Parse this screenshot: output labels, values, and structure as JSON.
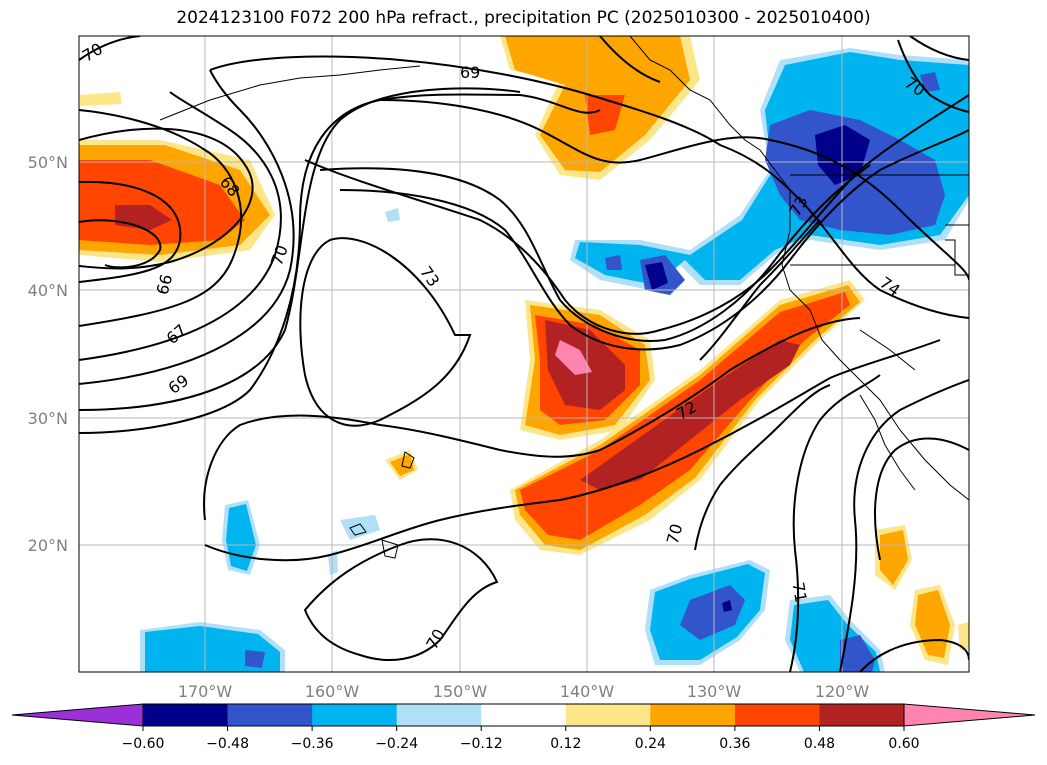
{
  "title": "2024123100 F072 200 hPa refract., precipitation PC (2025010300 - 2025010400)",
  "lat_labels": [
    "50°N",
    "40°N",
    "30°N",
    "20°N"
  ],
  "lon_labels": [
    "170°W",
    "160°W",
    "150°W",
    "140°W",
    "130°W",
    "120°W"
  ],
  "contour_labels": [
    "70",
    "69",
    "70",
    "68",
    "66",
    "67",
    "69",
    "70",
    "73",
    "74",
    "72",
    "70",
    "71",
    "70",
    "73"
  ],
  "colorbar": {
    "ticks": [
      "−0.60",
      "−0.48",
      "−0.36",
      "−0.24",
      "−0.12",
      "0.12",
      "0.24",
      "0.36",
      "0.48",
      "0.60"
    ],
    "colors": [
      "#9b30d9",
      "#00008b",
      "#3355cc",
      "#00b4f0",
      "#b0e0f8",
      "#ffffff",
      "#fde68a",
      "#ffa500",
      "#ff4500",
      "#b22222",
      "#ff85b0"
    ]
  }
}
